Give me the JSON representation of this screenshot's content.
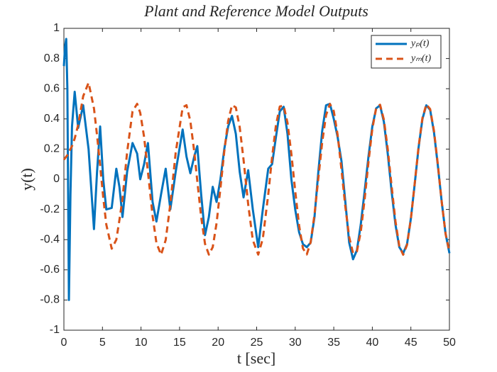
{
  "chart_data": {
    "type": "line",
    "title": "Plant and Reference Model Outputs",
    "x_label": "t [sec]",
    "y_label": "y(t)",
    "x": [
      0,
      0.15,
      0.3,
      0.45,
      0.65,
      0.85,
      1.05,
      1.4,
      1.85,
      2.5,
      3.2,
      3.9,
      4.3,
      4.7,
      5.1,
      5.5,
      6.2,
      6.8,
      7.2,
      7.6,
      8.2,
      8.9,
      9.5,
      9.9,
      10.4,
      10.9,
      11.5,
      12,
      12.6,
      13.2,
      13.8,
      14.5,
      15.4,
      15.9,
      16.4,
      16.9,
      17.3,
      17.8,
      18.3,
      18.8,
      19.3,
      19.8,
      20.3,
      20.8,
      21.3,
      21.8,
      22.3,
      22.8,
      23.3,
      23.9,
      24.5,
      25.2,
      25.8,
      26.5,
      27,
      27.5,
      28,
      28.5,
      29,
      29.5,
      30,
      30.5,
      31,
      31.5,
      32,
      32.5,
      33,
      33.5,
      34,
      34.5,
      35,
      35.5,
      36,
      36.5,
      37,
      37.5,
      38,
      38.5,
      39,
      39.5,
      40,
      40.5,
      41,
      41.5,
      42,
      42.5,
      43,
      43.5,
      44,
      44.5,
      45,
      45.5,
      46,
      46.5,
      47,
      47.5,
      48,
      48.5,
      49,
      49.5,
      50
    ],
    "series": [
      {
        "name": "yₚ(t)",
        "color": "#0072BD",
        "linestyle": "solid",
        "values": [
          0.75,
          0.88,
          0.93,
          0.6,
          -0.8,
          -0.1,
          0.35,
          0.58,
          0.34,
          0.49,
          0.2,
          -0.33,
          0.05,
          0.35,
          0.0,
          -0.2,
          -0.19,
          0.07,
          -0.05,
          -0.25,
          0.05,
          0.24,
          0.17,
          0.0,
          0.1,
          0.24,
          -0.15,
          -0.28,
          -0.1,
          0.07,
          -0.2,
          0.05,
          0.33,
          0.15,
          0.04,
          0.15,
          0.22,
          -0.1,
          -0.37,
          -0.25,
          -0.05,
          -0.15,
          0.0,
          0.2,
          0.35,
          0.42,
          0.3,
          0.05,
          -0.12,
          0.06,
          -0.2,
          -0.45,
          -0.2,
          0.07,
          0.1,
          0.28,
          0.45,
          0.48,
          0.3,
          0.0,
          -0.2,
          -0.35,
          -0.43,
          -0.45,
          -0.42,
          -0.25,
          0.05,
          0.32,
          0.49,
          0.5,
          0.4,
          0.28,
          0.12,
          -0.15,
          -0.42,
          -0.53,
          -0.47,
          -0.3,
          -0.08,
          0.15,
          0.35,
          0.47,
          0.49,
          0.38,
          0.17,
          -0.08,
          -0.3,
          -0.45,
          -0.49,
          -0.43,
          -0.26,
          -0.03,
          0.21,
          0.4,
          0.49,
          0.46,
          0.31,
          0.09,
          -0.15,
          -0.36,
          -0.49
        ]
      },
      {
        "name": "yₘ(t)",
        "color": "#D95319",
        "linestyle": "dashed",
        "values": [
          0.13,
          0.14,
          0.15,
          0.16,
          0.18,
          0.2,
          0.22,
          0.27,
          0.36,
          0.55,
          0.64,
          0.47,
          0.29,
          0.09,
          -0.12,
          -0.3,
          -0.46,
          -0.4,
          -0.27,
          -0.13,
          0.18,
          0.45,
          0.5,
          0.44,
          0.281,
          0.048,
          -0.242,
          -0.422,
          -0.5,
          -0.403,
          -0.166,
          0.177,
          0.476,
          0.491,
          0.385,
          0.185,
          -0.011,
          -0.249,
          -0.427,
          -0.499,
          -0.45,
          -0.291,
          -0.06,
          0.185,
          0.385,
          0.491,
          0.476,
          0.345,
          0.129,
          -0.166,
          -0.403,
          -0.499,
          -0.393,
          -0.101,
          0.146,
          0.358,
          0.482,
          0.488,
          0.374,
          0.169,
          -0.078,
          -0.305,
          -0.458,
          -0.498,
          -0.417,
          -0.234,
          0.007,
          0.246,
          0.425,
          0.499,
          0.452,
          0.294,
          0.064,
          -0.182,
          -0.383,
          -0.49,
          -0.478,
          -0.348,
          -0.134,
          0.114,
          0.334,
          0.472,
          0.494,
          0.395,
          0.2,
          -0.044,
          -0.278,
          -0.443,
          -0.5,
          -0.435,
          -0.263,
          -0.027,
          0.216,
          0.406,
          0.496,
          0.465,
          0.32,
          0.097,
          -0.15,
          -0.361,
          -0.483
        ]
      }
    ],
    "xlim": [
      0,
      50
    ],
    "xticks": [
      0,
      5,
      10,
      15,
      20,
      25,
      30,
      35,
      40,
      45,
      50
    ],
    "ylim": [
      -1,
      1
    ],
    "yticks": [
      -1,
      -0.8,
      -0.6,
      -0.4,
      -0.2,
      0,
      0.2,
      0.4,
      0.6,
      0.8,
      1
    ],
    "grid": false,
    "legend": "upper right"
  }
}
